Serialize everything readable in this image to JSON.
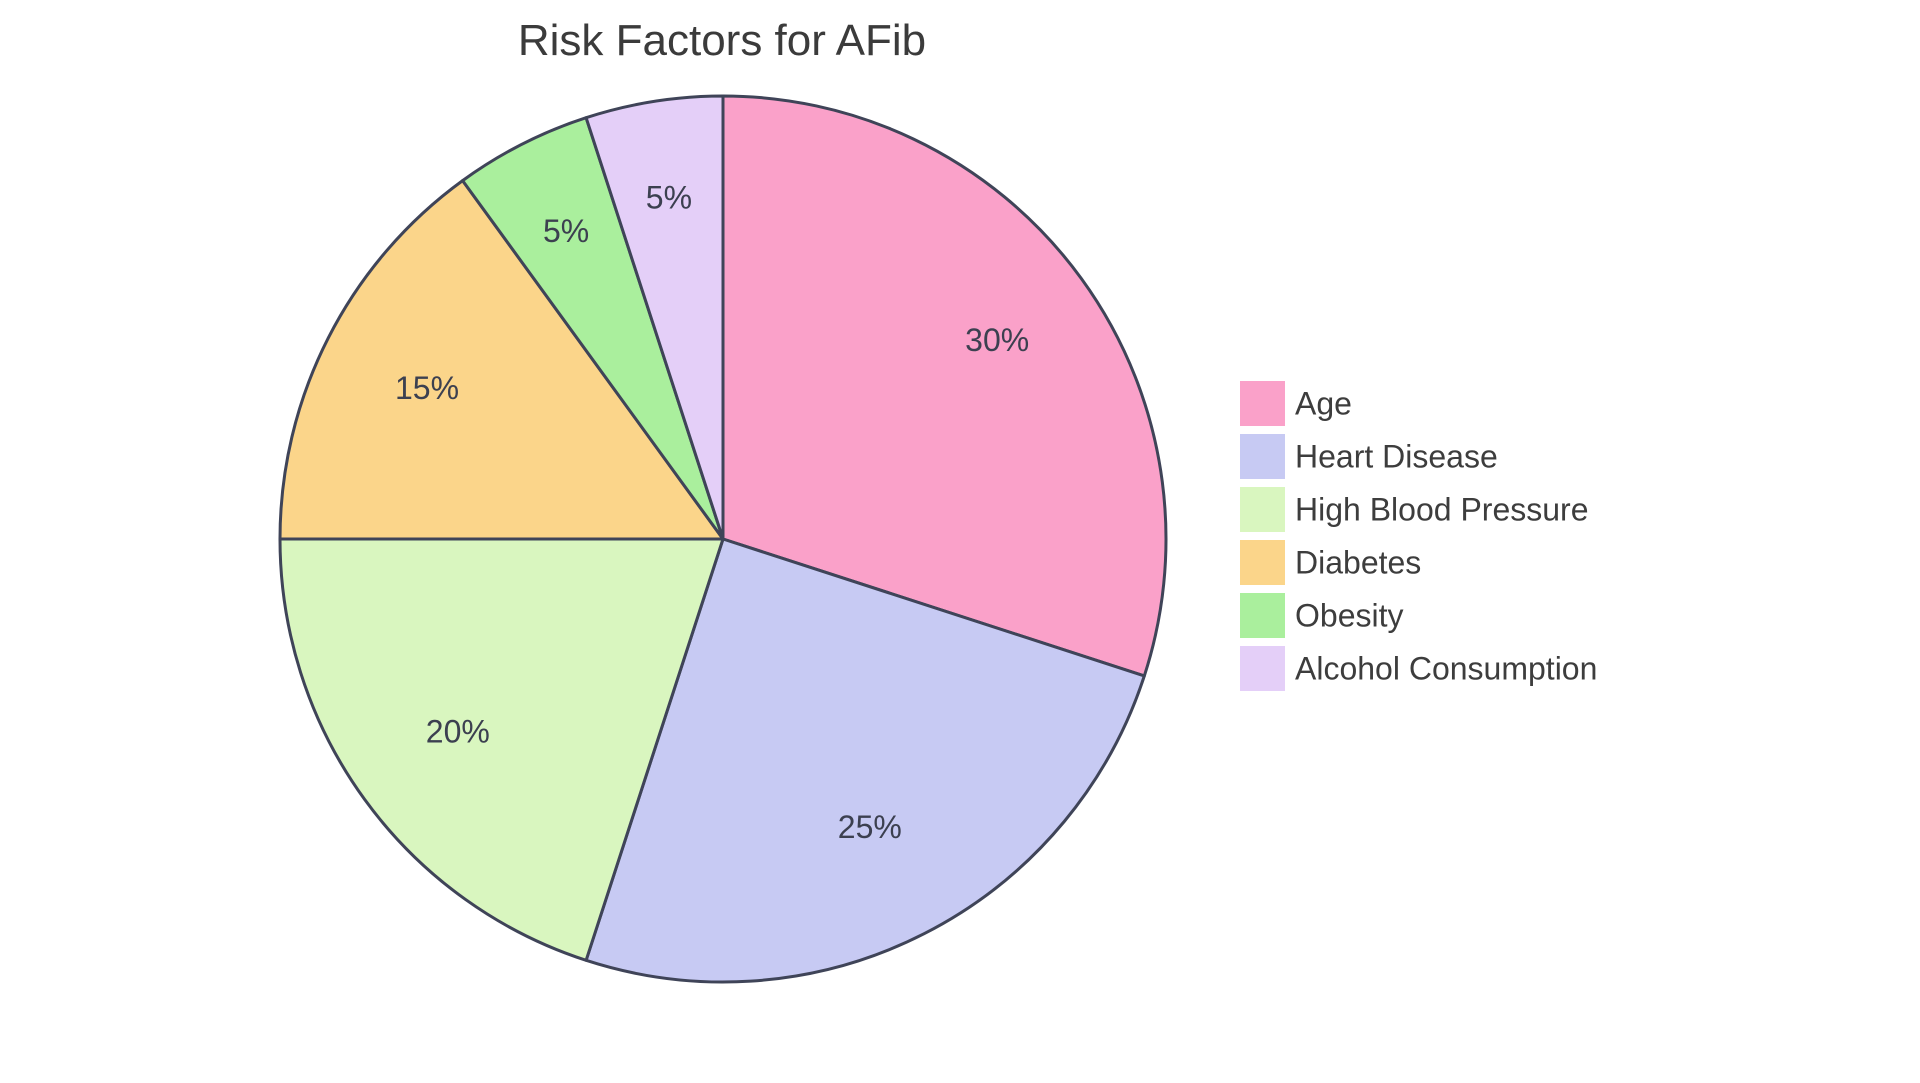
{
  "chart_data": {
    "type": "pie",
    "title": "Risk Factors for AFib",
    "labels": [
      "Age",
      "Heart Disease",
      "High Blood Pressure",
      "Diabetes",
      "Obesity",
      "Alcohol Consumption"
    ],
    "values": [
      30,
      25,
      20,
      15,
      5,
      5
    ],
    "value_labels": [
      "30%",
      "25%",
      "20%",
      "15%",
      "5%",
      "5%"
    ],
    "colors": [
      "#FAA1C9",
      "#C7CAF3",
      "#D9F6BF",
      "#FBD58A",
      "#AAEF9D",
      "#E4CFF8"
    ],
    "slice_border_color": "#3F4458",
    "label_color": "#3C4050",
    "title_color": "#3B3B3B",
    "legend_text_color": "#3D3D3D",
    "background_color": "#FFFFFF",
    "start_angle_deg": 0,
    "direction": "clockwise",
    "legend_position": "right",
    "grid": false
  }
}
